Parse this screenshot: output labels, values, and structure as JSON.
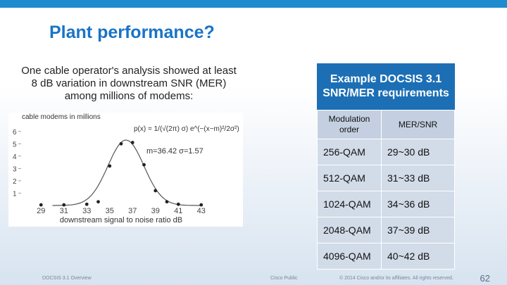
{
  "slide": {
    "title": "Plant performance?",
    "caption": "One cable operator's analysis showed at least 8 dB variation in downstream SNR (MER) among millions of modems:",
    "requirements_title": "Example DOCSIS 3.1 SNR/MER requirements",
    "table": {
      "headers": [
        "Modulation order",
        "MER/SNR"
      ],
      "rows": [
        [
          "256-QAM",
          "29~30 dB"
        ],
        [
          "512-QAM",
          "31~33 dB"
        ],
        [
          "1024-QAM",
          "34~36 dB"
        ],
        [
          "2048-QAM",
          "37~39 dB"
        ],
        [
          "4096-QAM",
          "40~42 dB"
        ]
      ]
    },
    "footer": {
      "left": "DOCSIS 3.1 Overview",
      "center": "Cisco Public",
      "copyright": "© 2014 Cisco and/or its affiliates. All rights reserved.",
      "page": "62"
    }
  },
  "chart_data": {
    "type": "scatter",
    "ylabel": "cable modems in millions",
    "xlabel": "downstream signal to noise ratio dB",
    "formula": "p(x) = 1/(√(2π) σ) e^(−(x−m)²/2σ²)",
    "params": "m=36.42 σ=1.57",
    "x_ticks": [
      "29",
      "31",
      "33",
      "35",
      "37",
      "39",
      "41",
      "43"
    ],
    "y_ticks": [
      "1",
      "2",
      "3",
      "4",
      "5",
      "6"
    ],
    "xlim": [
      28,
      44
    ],
    "ylim": [
      0,
      6.5
    ],
    "curve": {
      "mean": 36.42,
      "sigma": 1.57,
      "peak": 5.3
    },
    "points": [
      {
        "x": 29,
        "y": 0.05
      },
      {
        "x": 31,
        "y": 0.05
      },
      {
        "x": 33,
        "y": 0.1
      },
      {
        "x": 34,
        "y": 0.3
      },
      {
        "x": 35,
        "y": 3.2
      },
      {
        "x": 36,
        "y": 5.0
      },
      {
        "x": 37,
        "y": 5.1
      },
      {
        "x": 38,
        "y": 3.3
      },
      {
        "x": 39,
        "y": 1.2
      },
      {
        "x": 40,
        "y": 0.3
      },
      {
        "x": 41,
        "y": 0.1
      },
      {
        "x": 43,
        "y": 0.05
      }
    ]
  },
  "colors": {
    "accent": "#1a73c7",
    "header_bg": "#1c6fb5",
    "cell_bg": "#d2dbe8",
    "topbar": "#1f8ccf"
  }
}
